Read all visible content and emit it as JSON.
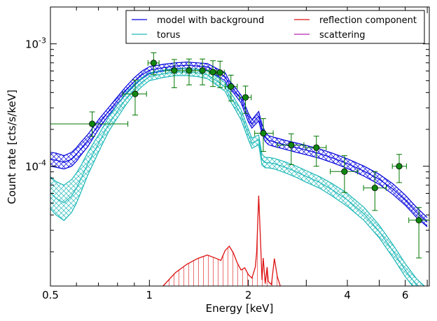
{
  "chart_data": {
    "type": "line",
    "xlabel": "Energy [keV]",
    "ylabel": "Count rate [cts/s/keV]",
    "xscale": "log",
    "yscale": "log",
    "xlim": [
      0.5,
      7.1
    ],
    "ylim": [
      1.05e-05,
      0.002
    ],
    "grid": false,
    "legend_position": "top-right",
    "x_tick_labels": [
      {
        "value": 0.5,
        "label": "0.5"
      },
      {
        "value": 1,
        "label": "1"
      },
      {
        "value": 2,
        "label": "2"
      },
      {
        "value": 4,
        "label": "4"
      },
      {
        "value": 6,
        "label": "6"
      }
    ],
    "y_tick_labels": [
      {
        "value": 0.0001,
        "base": "10",
        "exp": "-4"
      },
      {
        "value": 0.001,
        "base": "10",
        "exp": "-3"
      }
    ],
    "legend": [
      {
        "name": "model with background",
        "color": "#0000dd"
      },
      {
        "name": "torus",
        "color": "#20b8b8"
      },
      {
        "name": "reflection component",
        "color": "#dd1111"
      },
      {
        "name": "scattering",
        "color": "#bb22bb"
      }
    ],
    "series": [
      {
        "name": "model with background",
        "color": "#0000dd",
        "band": true,
        "x": [
          0.5,
          0.52,
          0.55,
          0.58,
          0.6,
          0.62,
          0.65,
          0.7,
          0.75,
          0.8,
          0.85,
          0.9,
          0.95,
          1.0,
          1.1,
          1.2,
          1.3,
          1.4,
          1.5,
          1.55,
          1.6,
          1.7,
          1.75,
          1.8,
          1.9,
          2.0,
          2.05,
          2.1,
          2.15,
          2.2,
          2.25,
          2.3,
          2.4,
          2.6,
          2.8,
          3.0,
          3.3,
          3.6,
          4.0,
          4.5,
          5.0,
          5.5,
          6.0,
          6.5,
          7.0
        ],
        "upper": [
          0.00013,
          0.000128,
          0.000122,
          0.00013,
          0.000142,
          0.000158,
          0.000182,
          0.00024,
          0.0003,
          0.00037,
          0.00045,
          0.00053,
          0.0006,
          0.00065,
          0.00068,
          0.0007,
          0.00071,
          0.0007,
          0.00069,
          0.00066,
          0.00063,
          0.00058,
          0.0005,
          0.00046,
          0.00038,
          0.00027,
          0.00024,
          0.00026,
          0.00028,
          0.00022,
          0.00019,
          0.000178,
          0.000172,
          0.000162,
          0.000155,
          0.000148,
          0.000138,
          0.000128,
          0.000115,
          0.0001,
          8.6e-05,
          7.2e-05,
          5.8e-05,
          4.6e-05,
          3.8e-05
        ],
        "lower": [
          0.0001,
          9.8e-05,
          9.5e-05,
          0.0001,
          0.00011,
          0.000124,
          0.000145,
          0.0002,
          0.00026,
          0.00032,
          0.00039,
          0.00046,
          0.00052,
          0.00057,
          0.0006,
          0.00062,
          0.00063,
          0.00062,
          0.00061,
          0.00058,
          0.00055,
          0.0005,
          0.00043,
          0.0004,
          0.00033,
          0.00023,
          0.000205,
          0.00022,
          0.000235,
          0.000185,
          0.00016,
          0.00015,
          0.000145,
          0.000137,
          0.00013,
          0.000124,
          0.000116,
          0.000107,
          9.6e-05,
          8.3e-05,
          7.1e-05,
          5.9e-05,
          4.8e-05,
          3.8e-05,
          3.2e-05
        ]
      },
      {
        "name": "torus",
        "color": "#20b8b8",
        "band": true,
        "x": [
          0.5,
          0.52,
          0.55,
          0.58,
          0.6,
          0.62,
          0.65,
          0.7,
          0.75,
          0.8,
          0.85,
          0.9,
          0.95,
          1.0,
          1.1,
          1.2,
          1.3,
          1.4,
          1.5,
          1.55,
          1.6,
          1.7,
          1.75,
          1.8,
          1.9,
          2.0,
          2.05,
          2.1,
          2.15,
          2.2,
          2.25,
          2.3,
          2.4,
          2.6,
          2.8,
          3.0,
          3.3,
          3.6,
          4.0,
          4.5,
          5.0,
          5.5,
          6.0,
          6.5,
          7.0
        ],
        "upper": [
          8.2e-05,
          7.5e-05,
          7e-05,
          7.8e-05,
          8.8e-05,
          0.000102,
          0.00013,
          0.00018,
          0.00025,
          0.00032,
          0.0004,
          0.00047,
          0.00053,
          0.00058,
          0.00061,
          0.00063,
          0.00063,
          0.00062,
          0.0006,
          0.00057,
          0.00054,
          0.00048,
          0.00041,
          0.00037,
          0.00029,
          0.0002,
          0.00017,
          0.000175,
          0.00018,
          0.000125,
          0.000118,
          0.000118,
          0.000116,
          0.000108,
          0.0001,
          9.2e-05,
          8.2e-05,
          7.2e-05,
          6e-05,
          4.6e-05,
          3.3e-05,
          2.3e-05,
          1.6e-05,
          1.2e-05,
          1e-05
        ],
        "lower": [
          4.5e-05,
          4e-05,
          3.6e-05,
          4.2e-05,
          5e-05,
          6.2e-05,
          8.5e-05,
          0.00013,
          0.00019,
          0.00025,
          0.00032,
          0.00039,
          0.00045,
          0.0005,
          0.00053,
          0.00055,
          0.00055,
          0.00054,
          0.00052,
          0.00049,
          0.00046,
          0.00041,
          0.00035,
          0.00031,
          0.00024,
          0.000165,
          0.00014,
          0.000145,
          0.00015,
          0.000102,
          9.7e-05,
          9.7e-05,
          9.5e-05,
          8.8e-05,
          8.1e-05,
          7.4e-05,
          6.6e-05,
          5.7e-05,
          4.7e-05,
          3.6e-05,
          2.6e-05,
          1.8e-05,
          1.25e-05,
          9.5e-06,
          8e-06
        ]
      },
      {
        "name": "reflection component",
        "color": "#dd1111",
        "x": [
          1.1,
          1.2,
          1.3,
          1.4,
          1.5,
          1.6,
          1.65,
          1.7,
          1.75,
          1.8,
          1.85,
          1.9,
          1.95,
          2.0,
          2.05,
          2.1,
          2.12,
          2.15,
          2.18,
          2.2,
          2.22,
          2.25,
          2.28,
          2.3,
          2.35,
          2.4,
          2.45,
          2.5
        ],
        "y": [
          1.05e-05,
          1.35e-05,
          1.58e-05,
          1.76e-05,
          1.88e-05,
          1.76e-05,
          1.7e-05,
          2.05e-05,
          2.22e-05,
          1.96e-05,
          1.62e-05,
          1.42e-05,
          1.48e-05,
          1.3e-05,
          1.22e-05,
          1.5e-05,
          1.99e-05,
          5.75e-05,
          2.3e-05,
          1.18e-05,
          1.78e-05,
          1.1e-05,
          1.5e-05,
          1.14e-05,
          1.08e-05,
          1.76e-05,
          1.25e-05,
          1.05e-05
        ]
      },
      {
        "name": "data",
        "color": "#007700",
        "points": [
          {
            "x": 0.67,
            "y": 0.000222,
            "xlo": 0.5,
            "xhi": 0.86,
            "ylo": 0.000175,
            "yhi": 0.000278
          },
          {
            "x": 0.905,
            "y": 0.00039,
            "xlo": 0.83,
            "xhi": 0.98,
            "ylo": 0.000262,
            "yhi": 0.000505
          },
          {
            "x": 1.03,
            "y": 0.000698,
            "xlo": 0.99,
            "xhi": 1.07,
            "ylo": 0.00056,
            "yhi": 0.000845
          },
          {
            "x": 1.19,
            "y": 0.000605,
            "xlo": 1.12,
            "xhi": 1.26,
            "ylo": 0.000438,
            "yhi": 0.000745
          },
          {
            "x": 1.32,
            "y": 0.000605,
            "xlo": 1.26,
            "xhi": 1.38,
            "ylo": 0.000462,
            "yhi": 0.000752
          },
          {
            "x": 1.45,
            "y": 0.000605,
            "xlo": 1.38,
            "xhi": 1.52,
            "ylo": 0.000462,
            "yhi": 0.000752
          },
          {
            "x": 1.56,
            "y": 0.000588,
            "xlo": 1.52,
            "xhi": 1.6,
            "ylo": 0.000448,
            "yhi": 0.000728
          },
          {
            "x": 1.64,
            "y": 0.000582,
            "xlo": 1.6,
            "xhi": 1.69,
            "ylo": 0.000438,
            "yhi": 0.000722
          },
          {
            "x": 1.77,
            "y": 0.000448,
            "xlo": 1.7,
            "xhi": 1.85,
            "ylo": 0.000342,
            "yhi": 0.000555
          },
          {
            "x": 1.96,
            "y": 0.000365,
            "xlo": 1.88,
            "xhi": 2.04,
            "ylo": 0.00027,
            "yhi": 0.000452
          },
          {
            "x": 2.22,
            "y": 0.000186,
            "xlo": 2.09,
            "xhi": 2.38,
            "ylo": 0.000132,
            "yhi": 0.000245
          },
          {
            "x": 2.7,
            "y": 0.000149,
            "xlo": 2.45,
            "xhi": 2.95,
            "ylo": 0.000103,
            "yhi": 0.000184
          },
          {
            "x": 3.22,
            "y": 0.000142,
            "xlo": 2.99,
            "xhi": 3.45,
            "ylo": 0.0001,
            "yhi": 0.000176
          },
          {
            "x": 3.92,
            "y": 9.05e-05,
            "xlo": 3.55,
            "xhi": 4.3,
            "ylo": 6.1e-05,
            "yhi": 0.000122
          },
          {
            "x": 4.85,
            "y": 6.65e-05,
            "xlo": 4.48,
            "xhi": 5.25,
            "ylo": 4.35e-05,
            "yhi": 9.05e-05
          },
          {
            "x": 5.75,
            "y": 0.0001,
            "xlo": 5.48,
            "xhi": 6.05,
            "ylo": 7.35e-05,
            "yhi": 0.000125
          },
          {
            "x": 6.6,
            "y": 3.62e-05,
            "xlo": 6.15,
            "xhi": 7.1,
            "ylo": 1.78e-05,
            "yhi": 4.6e-05
          }
        ]
      }
    ]
  }
}
